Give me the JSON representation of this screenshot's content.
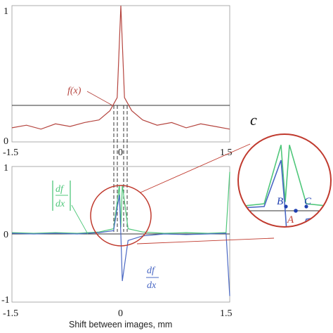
{
  "chart_data": [
    {
      "type": "line",
      "panel": "top",
      "xlim": [
        -1.5,
        1.5
      ],
      "ylim": [
        0,
        1
      ],
      "x_ticks": [
        "-1.5",
        "0",
        "1.5"
      ],
      "y_ticks": [
        "0",
        "1"
      ],
      "horizontal_line_y": 0.3,
      "series": [
        {
          "name": "f(x)",
          "color": "#b5453f",
          "x": [
            -1.5,
            -1.3,
            -1.1,
            -0.9,
            -0.7,
            -0.5,
            -0.3,
            -0.15,
            -0.05,
            0,
            0.05,
            0.15,
            0.3,
            0.5,
            0.7,
            0.9,
            1.1,
            1.3,
            1.5
          ],
          "y": [
            0.07,
            0.09,
            0.06,
            0.1,
            0.08,
            0.11,
            0.13,
            0.2,
            0.3,
            1.0,
            0.3,
            0.2,
            0.13,
            0.09,
            0.11,
            0.07,
            0.1,
            0.08,
            0.06
          ]
        }
      ]
    },
    {
      "type": "line",
      "panel": "bottom",
      "xlim": [
        -1.5,
        1.5
      ],
      "ylim": [
        -1,
        1
      ],
      "x_ticks": [
        "-1.5",
        "0",
        "1.5"
      ],
      "y_ticks": [
        "-1",
        "0",
        "1"
      ],
      "xlabel": "Shift between images, mm",
      "series": [
        {
          "name": "|df/dx|",
          "color": "#4fc77a",
          "x": [
            -1.5,
            -1.2,
            -0.9,
            -0.6,
            -0.3,
            -0.1,
            -0.02,
            0,
            0.02,
            0.1,
            0.3,
            0.6,
            0.9,
            1.2,
            1.45,
            1.5
          ],
          "y": [
            0.02,
            0.01,
            0.02,
            0.01,
            0.03,
            0.08,
            0.75,
            0.1,
            0.75,
            0.08,
            0.03,
            0.01,
            0.02,
            0.01,
            0.02,
            0.95
          ]
        },
        {
          "name": "df/dx",
          "color": "#4a68c4",
          "x": [
            -1.5,
            -1.2,
            -0.9,
            -0.6,
            -0.3,
            -0.1,
            -0.02,
            0,
            0.02,
            0.1,
            0.3,
            0.6,
            0.9,
            1.2,
            1.45,
            1.5
          ],
          "y": [
            0.01,
            0.0,
            0.01,
            0.0,
            0.02,
            0.05,
            0.6,
            0.0,
            -0.72,
            -0.1,
            -0.03,
            0.0,
            -0.01,
            0.0,
            0.01,
            -0.95
          ]
        }
      ]
    }
  ],
  "labels": {
    "f": "f(x)",
    "abs_df_num": "df",
    "abs_df_den": "dx",
    "df_num": "df",
    "df_den": "dx",
    "c": "c",
    "A": "A",
    "B": "B",
    "C": "C"
  },
  "colors": {
    "f": "#b5453f",
    "abs": "#4fc77a",
    "deriv": "#4a68c4",
    "frame": "#888888",
    "circle": "#c03a2e",
    "point": "#1f3fb0"
  }
}
